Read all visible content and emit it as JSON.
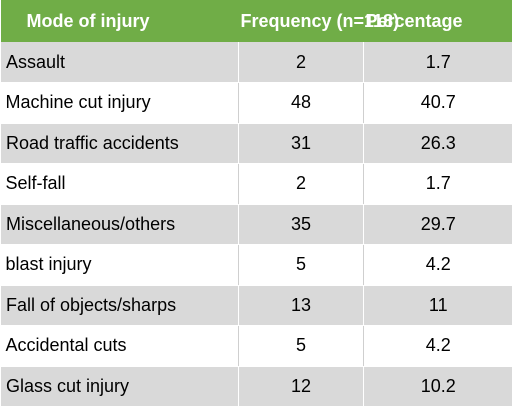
{
  "chart_data": {
    "type": "table",
    "columns": [
      "Mode of injury",
      "Frequency (n=118)",
      "Percentage"
    ],
    "rows": [
      {
        "mode": "Assault",
        "frequency": "2",
        "percentage": "1.7"
      },
      {
        "mode": "Machine cut injury",
        "frequency": "48",
        "percentage": "40.7"
      },
      {
        "mode": "Road traffic accidents",
        "frequency": "31",
        "percentage": "26.3"
      },
      {
        "mode": "Self-fall",
        "frequency": "2",
        "percentage": "1.7"
      },
      {
        "mode": "Miscellaneous/others",
        "frequency": "35",
        "percentage": "29.7"
      },
      {
        "mode": "blast injury",
        "frequency": "5",
        "percentage": "4.2"
      },
      {
        "mode": "Fall of objects/sharps",
        "frequency": "13",
        "percentage": "11"
      },
      {
        "mode": "Accidental cuts",
        "frequency": "5",
        "percentage": "4.2"
      },
      {
        "mode": "Glass cut injury",
        "frequency": "12",
        "percentage": "10.2"
      }
    ],
    "colors": {
      "header_bg": "#70ad47",
      "header_text": "#ffffff",
      "band_row": "#d9d9d9",
      "plain_row": "#ffffff"
    }
  }
}
